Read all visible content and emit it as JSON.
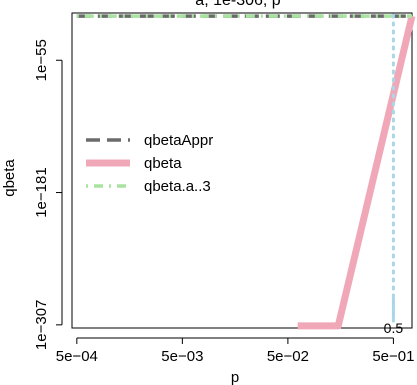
{
  "chart_data": {
    "type": "line",
    "title": "a, 1e-306, p",
    "xlabel": "p",
    "ylabel": "qbeta",
    "x_scale": "log10",
    "y_scale": "log10",
    "xlim": [
      0.00045,
      0.75
    ],
    "ylim": [
      1e-310,
      1e-10
    ],
    "x_ticks": [
      {
        "value": 0.0005,
        "label": "5e−04"
      },
      {
        "value": 0.005,
        "label": "5e−03"
      },
      {
        "value": 0.05,
        "label": "5e−02"
      },
      {
        "value": 0.5,
        "label": "5e−01"
      }
    ],
    "y_ticks": [
      {
        "value": 1e-55,
        "label": "1e−55"
      },
      {
        "value": 1e-181,
        "label": "1e−181"
      },
      {
        "value": 1e-307,
        "label": "1e−307"
      }
    ],
    "grid": false,
    "legend_position": "left",
    "series": [
      {
        "name": "qbetaAppr",
        "color": "#6b6b6b",
        "dash": "long-dash",
        "x": [
          0.0005,
          0.75
        ],
        "y": [
          1e-13,
          1e-13
        ]
      },
      {
        "name": "qbeta",
        "color": "#f0a8b8",
        "dash": "solid",
        "x": [
          0.062,
          0.15,
          0.75
        ],
        "y": [
          1e-308,
          1e-308,
          1e-13
        ]
      },
      {
        "name": "qbeta.a..3",
        "color": "#a8e4a0",
        "dash": "dot-dash",
        "x": [
          0.0005,
          0.75
        ],
        "y": [
          1e-13,
          1e-13
        ]
      }
    ],
    "annotations": [
      {
        "label": "0.5",
        "x": 0.5,
        "color": "#a8d8e8",
        "style": "dotted-vertical-line"
      }
    ]
  }
}
